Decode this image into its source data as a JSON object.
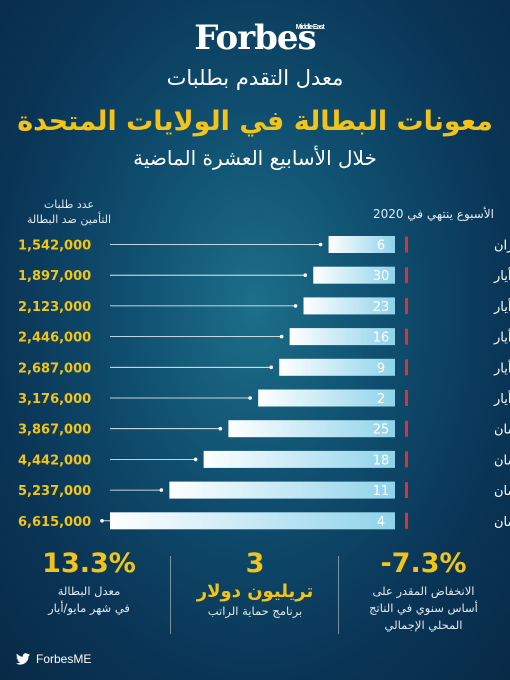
{
  "brand": {
    "name": "Forbes",
    "sub": "Middle East"
  },
  "header": {
    "line1": "معدل التقدم بطلبات",
    "line2": "معونات البطالة في الولايات المتحدة",
    "line3": "خلال الأسابيع العشرة الماضية"
  },
  "col_left_header": [
    "عدد طلبات",
    "التأمين ضد البطالة"
  ],
  "col_right_header": "الأسبوع ينتهي في 2020",
  "chart_data": {
    "type": "bar",
    "orientation": "horizontal",
    "categories": [
      {
        "day": "6",
        "month": "يونيو/حزيران"
      },
      {
        "day": "30",
        "month": "مايو/أيار"
      },
      {
        "day": "23",
        "month": "مايو/أيار"
      },
      {
        "day": "16",
        "month": "مايو/أيار"
      },
      {
        "day": "9",
        "month": "مايو/أيار"
      },
      {
        "day": "2",
        "month": "مايو/أيار"
      },
      {
        "day": "25",
        "month": "أبريل/نيسان"
      },
      {
        "day": "18",
        "month": "أبريل/نيسان"
      },
      {
        "day": "11",
        "month": "أبريل/نيسان"
      },
      {
        "day": "4",
        "month": "أبريل/نيسان"
      }
    ],
    "values": [
      1542000,
      1897000,
      2123000,
      2446000,
      2687000,
      3176000,
      3867000,
      4442000,
      5237000,
      6615000
    ],
    "value_labels": [
      "1,542,000",
      "1,897,000",
      "2,123,000",
      "2,446,000",
      "2,687,000",
      "3,176,000",
      "3,867,000",
      "4,442,000",
      "5,237,000",
      "6,615,000"
    ],
    "xlim": [
      0,
      6615000
    ],
    "grid": false
  },
  "stats": [
    {
      "value": "-7.3%",
      "label_lines": [
        "الانخفاض المقدر على",
        "أساس سنوي في الناتج",
        "المحلي الإجمالي"
      ]
    },
    {
      "value": "3",
      "label_big": "تريليون دولار",
      "label_small": "برنامج حماية الراتب"
    },
    {
      "value": "13.3%",
      "label_lines": [
        "معدل البطالة",
        "في شهر مايو/أيار"
      ]
    }
  ],
  "footer": {
    "handle": "ForbesME"
  },
  "colors": {
    "accent": "#f2c419",
    "marker": "#d8333a",
    "bar_start": "#ffffff",
    "bar_end": "#8fd3ea"
  }
}
